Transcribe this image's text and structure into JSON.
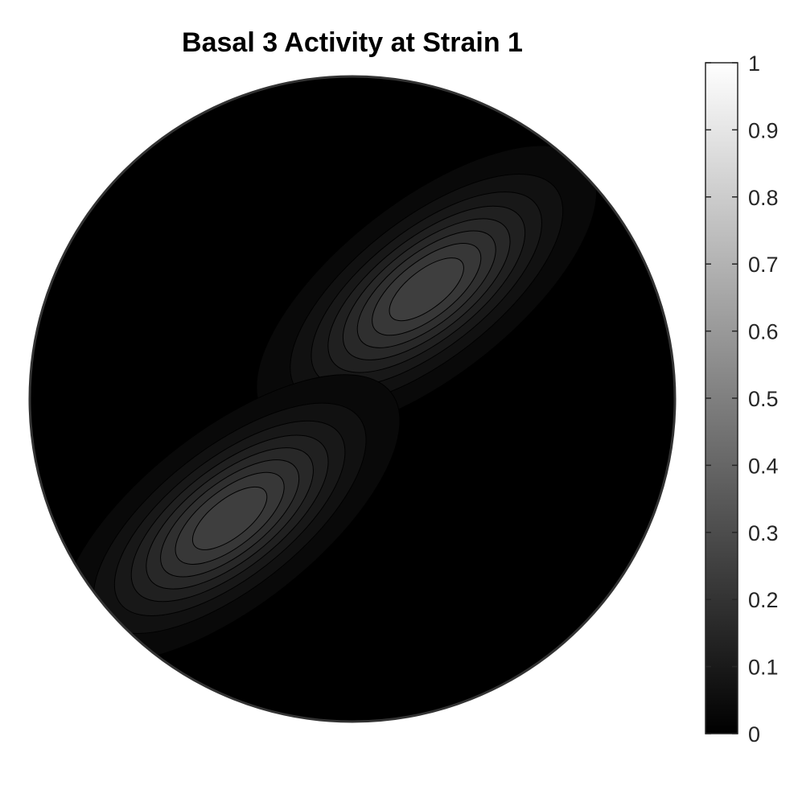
{
  "chart_data": {
    "type": "heatmap",
    "subtype": "pole-figure-contour",
    "title": "Basal 3 Activity at Strain 1",
    "xlabel": "",
    "ylabel": "",
    "colormap": "gray",
    "color_limits": [
      0,
      1
    ],
    "colorbar": {
      "placement": "right",
      "ticks": [
        0,
        0.1,
        0.2,
        0.3,
        0.4,
        0.5,
        0.6,
        0.7,
        0.8,
        0.9,
        1
      ],
      "tick_labels": [
        "0",
        "0.1",
        "0.2",
        "0.3",
        "0.4",
        "0.5",
        "0.6",
        "0.7",
        "0.8",
        "0.9",
        "1"
      ]
    },
    "contour_levels": [
      0.02,
      0.05,
      0.08,
      0.11,
      0.14,
      0.17,
      0.2,
      0.23
    ],
    "domain": "unit-disk",
    "peaks": [
      {
        "cx": 0.23,
        "cy": 0.34,
        "major_axis_deg": -38,
        "sigma_major": 0.28,
        "sigma_minor": 0.12,
        "amplitude": 0.26
      },
      {
        "cx": -0.38,
        "cy": -0.37,
        "major_axis_deg": -38,
        "sigma_major": 0.28,
        "sigma_minor": 0.12,
        "amplitude": 0.26
      }
    ],
    "grid": false,
    "legend": "none"
  },
  "colors": {
    "background": "#ffffff",
    "outline": "#333333",
    "contour_line": "#000000",
    "text": "#262626"
  }
}
